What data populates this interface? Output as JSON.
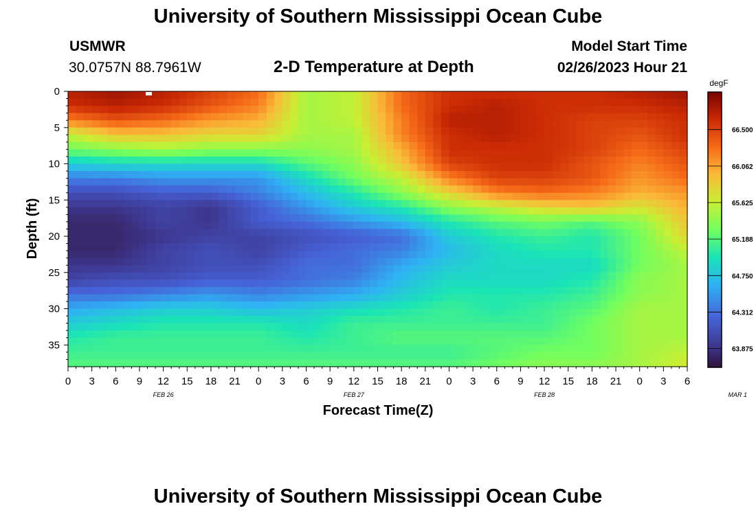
{
  "page": {
    "title": "University of Southern Mississippi Ocean Cube",
    "station_name": "USMWR",
    "station_coords": "30.0757N  88.7961W",
    "subtitle": "2-D Temperature at Depth",
    "model_label": "Model Start Time",
    "model_time": "02/26/2023 Hour 21",
    "footer_title": "University of Southern Mississippi Ocean Cube"
  },
  "chart_data": {
    "type": "heatmap",
    "title": "2-D Temperature at Depth",
    "xlabel": "Forecast Time(Z)",
    "ylabel": "Depth (ft)",
    "x_tick_labels": [
      "0",
      "3",
      "6",
      "9",
      "12",
      "15",
      "18",
      "21",
      "0",
      "3",
      "6",
      "9",
      "12",
      "15",
      "18",
      "21",
      "0",
      "3",
      "6",
      "9",
      "12",
      "15",
      "18",
      "21",
      "0",
      "3",
      "6"
    ],
    "date_labels": [
      {
        "text": "FEB 26",
        "hour": 12
      },
      {
        "text": "FEB 27",
        "hour": 36
      },
      {
        "text": "FEB 28",
        "hour": 60
      },
      {
        "text": "MAR 1",
        "hour": 84
      }
    ],
    "xlim": [
      0,
      78
    ],
    "y_ticks": [
      0,
      5,
      10,
      15,
      20,
      25,
      30,
      35
    ],
    "ylim": [
      0,
      38
    ],
    "colorbar": {
      "unit": "degF",
      "ticks": [
        "63.875",
        "64.312",
        "64.750",
        "65.188",
        "65.625",
        "66.062",
        "66.500"
      ],
      "range": [
        63.65,
        66.95
      ]
    },
    "data_note": "Temperature (degF) sampled at forecast hours 0-78 every 6 h and depths 0-38 ft every 2 ft (rows = depth).",
    "x_hours": [
      0,
      6,
      12,
      18,
      24,
      30,
      36,
      42,
      48,
      54,
      60,
      66,
      72,
      78
    ],
    "depths_ft": [
      0,
      2,
      4,
      6,
      8,
      10,
      12,
      14,
      16,
      18,
      20,
      22,
      24,
      26,
      28,
      30,
      32,
      34,
      36,
      38
    ],
    "temperature": [
      [
        66.7,
        66.8,
        66.7,
        66.5,
        66.3,
        65.5,
        65.6,
        66.3,
        66.6,
        66.6,
        66.6,
        66.6,
        66.7,
        66.8
      ],
      [
        66.6,
        66.7,
        66.6,
        66.4,
        66.2,
        65.5,
        65.6,
        66.3,
        66.6,
        66.7,
        66.6,
        66.6,
        66.6,
        66.7
      ],
      [
        66.2,
        66.4,
        66.3,
        66.1,
        66.0,
        65.5,
        65.6,
        66.2,
        66.7,
        66.7,
        66.6,
        66.5,
        66.5,
        66.6
      ],
      [
        65.6,
        65.9,
        65.9,
        65.8,
        65.8,
        65.5,
        65.5,
        66.2,
        66.6,
        66.7,
        66.6,
        66.5,
        66.4,
        66.6
      ],
      [
        65.3,
        65.4,
        65.5,
        65.4,
        65.4,
        65.4,
        65.5,
        66.0,
        66.6,
        66.6,
        66.6,
        66.5,
        66.3,
        66.5
      ],
      [
        64.8,
        64.9,
        64.9,
        64.9,
        64.9,
        65.2,
        65.4,
        65.9,
        66.5,
        66.6,
        66.6,
        66.4,
        66.2,
        66.4
      ],
      [
        64.4,
        64.4,
        64.5,
        64.5,
        64.5,
        64.9,
        65.3,
        65.6,
        66.2,
        66.5,
        66.5,
        66.4,
        66.1,
        66.3
      ],
      [
        64.1,
        64.1,
        64.2,
        64.2,
        64.4,
        64.7,
        65.0,
        65.4,
        65.8,
        66.2,
        66.3,
        66.2,
        66.0,
        66.1
      ],
      [
        63.9,
        63.9,
        64.0,
        63.9,
        64.2,
        64.5,
        64.8,
        65.0,
        65.4,
        65.6,
        65.8,
        65.9,
        65.7,
        66.0
      ],
      [
        63.8,
        63.8,
        64.0,
        63.9,
        64.2,
        64.3,
        64.5,
        64.7,
        65.0,
        65.2,
        65.3,
        65.2,
        65.4,
        65.9
      ],
      [
        63.8,
        63.8,
        63.9,
        64.0,
        64.0,
        64.1,
        64.2,
        64.3,
        64.8,
        65.0,
        65.1,
        65.0,
        65.3,
        65.8
      ],
      [
        63.8,
        63.8,
        64.0,
        64.1,
        64.0,
        64.2,
        64.3,
        64.4,
        64.7,
        64.9,
        65.0,
        65.0,
        65.3,
        65.6
      ],
      [
        63.9,
        63.9,
        64.0,
        64.1,
        64.1,
        64.3,
        64.3,
        64.6,
        64.8,
        64.9,
        64.9,
        64.9,
        65.3,
        65.5
      ],
      [
        64.0,
        64.1,
        64.1,
        64.2,
        64.2,
        64.3,
        64.4,
        64.7,
        64.9,
        64.9,
        64.9,
        65.0,
        65.4,
        65.5
      ],
      [
        64.3,
        64.3,
        64.4,
        64.5,
        64.4,
        64.5,
        64.6,
        64.8,
        65.0,
        65.0,
        65.0,
        65.1,
        65.4,
        65.5
      ],
      [
        64.6,
        64.7,
        64.8,
        64.8,
        64.7,
        64.8,
        64.9,
        65.0,
        65.1,
        65.0,
        65.1,
        65.2,
        65.5,
        65.5
      ],
      [
        64.8,
        64.9,
        65.0,
        65.0,
        65.0,
        64.9,
        65.1,
        65.1,
        65.1,
        65.1,
        65.1,
        65.3,
        65.5,
        65.5
      ],
      [
        65.0,
        65.1,
        65.1,
        65.1,
        65.1,
        65.0,
        65.1,
        65.2,
        65.2,
        65.2,
        65.2,
        65.3,
        65.5,
        65.5
      ],
      [
        65.1,
        65.1,
        65.1,
        65.1,
        65.1,
        65.1,
        65.1,
        65.1,
        65.1,
        65.2,
        65.3,
        65.3,
        65.5,
        65.6
      ],
      [
        65.2,
        65.2,
        65.2,
        65.2,
        65.2,
        65.2,
        65.2,
        65.2,
        65.2,
        65.3,
        65.4,
        65.4,
        65.5,
        65.7
      ]
    ]
  }
}
